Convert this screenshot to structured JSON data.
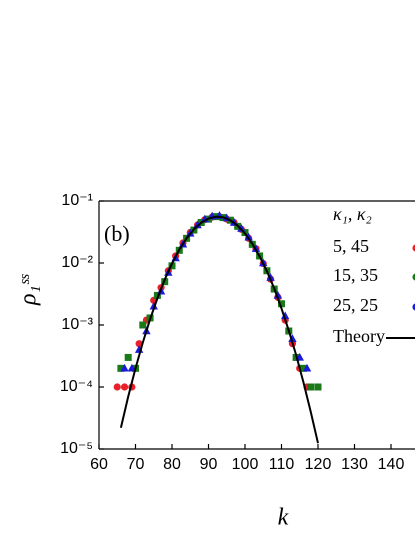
{
  "chart_data": {
    "type": "scatter",
    "annotation": "(b)",
    "x_label": "k",
    "y_label": "ρ₁ˢˢ",
    "legend_title": "κ₁, κ₂",
    "log_y": true,
    "xlim": [
      60,
      150
    ],
    "ylim": [
      1e-05,
      0.1
    ],
    "xticks": [
      60,
      70,
      80,
      90,
      100,
      110,
      120,
      130,
      140
    ],
    "yticks": [
      {
        "value": 0.1,
        "label": "10⁻¹"
      },
      {
        "value": 0.01,
        "label": "10⁻²"
      },
      {
        "value": 0.001,
        "label": "10⁻³"
      },
      {
        "value": 0.0001,
        "label": "10⁻⁴"
      },
      {
        "value": 1e-05,
        "label": "10⁻⁵"
      }
    ],
    "series": [
      {
        "name": "5, 45",
        "color": "#e8202a",
        "marker": "circle",
        "x": [
          65,
          67,
          69,
          71,
          73,
          75,
          77,
          79,
          81,
          83,
          85,
          87,
          89,
          91,
          93,
          95,
          97,
          99,
          101,
          103,
          105,
          107,
          109,
          111,
          113,
          115,
          117
        ],
        "values": [
          0.0001,
          0.0001,
          0.0001,
          0.0005,
          0.0012,
          0.0025,
          0.004,
          0.0075,
          0.013,
          0.021,
          0.031,
          0.041,
          0.05,
          0.055,
          0.056,
          0.051,
          0.045,
          0.035,
          0.025,
          0.017,
          0.0098,
          0.0055,
          0.0028,
          0.0012,
          0.0005,
          0.0002,
          0.0001
        ]
      },
      {
        "name": "15, 35",
        "color": "#1a7a1a",
        "marker": "square",
        "x": [
          66,
          68,
          70,
          72,
          74,
          76,
          78,
          80,
          82,
          84,
          86,
          88,
          90,
          92,
          94,
          96,
          98,
          100,
          102,
          104,
          106,
          108,
          110,
          112,
          114,
          116,
          118,
          120
        ],
        "values": [
          0.0002,
          0.0003,
          0.0002,
          0.001,
          0.0013,
          0.003,
          0.005,
          0.009,
          0.016,
          0.025,
          0.034,
          0.045,
          0.051,
          0.056,
          0.054,
          0.049,
          0.039,
          0.031,
          0.02,
          0.013,
          0.0075,
          0.0038,
          0.0022,
          0.0008,
          0.0003,
          0.0002,
          0.0001,
          0.0001
        ]
      },
      {
        "name": "25, 25",
        "color": "#1a1adc",
        "marker": "triangle",
        "x": [
          67,
          69,
          71,
          73,
          75,
          77,
          79,
          81,
          83,
          85,
          87,
          89,
          91,
          93,
          95,
          97,
          99,
          101,
          103,
          105,
          107,
          109,
          111,
          113,
          115,
          117
        ],
        "values": [
          0.0002,
          0.0002,
          0.0004,
          0.0008,
          0.002,
          0.0035,
          0.007,
          0.012,
          0.02,
          0.03,
          0.041,
          0.051,
          0.057,
          0.058,
          0.053,
          0.045,
          0.036,
          0.026,
          0.017,
          0.01,
          0.0058,
          0.003,
          0.0014,
          0.0006,
          0.0003,
          0.0002
        ]
      },
      {
        "name": "Theory",
        "color": "#000000",
        "marker": "line",
        "x": [
          66,
          68,
          70,
          72,
          74,
          76,
          78,
          80,
          82,
          84,
          86,
          88,
          90,
          92,
          94,
          96,
          98,
          100,
          102,
          104,
          106,
          108,
          110,
          112,
          114,
          116,
          118,
          120
        ],
        "values": [
          2.2e-05,
          7e-05,
          0.0002,
          0.00052,
          0.00124,
          0.0027,
          0.0054,
          0.0098,
          0.0164,
          0.025,
          0.035,
          0.0447,
          0.0522,
          0.0558,
          0.0546,
          0.0489,
          0.04,
          0.03,
          0.0205,
          0.0128,
          0.0074,
          0.0039,
          0.00185,
          0.00081,
          0.00033,
          0.00012,
          4e-05,
          1.24e-05
        ]
      }
    ]
  }
}
